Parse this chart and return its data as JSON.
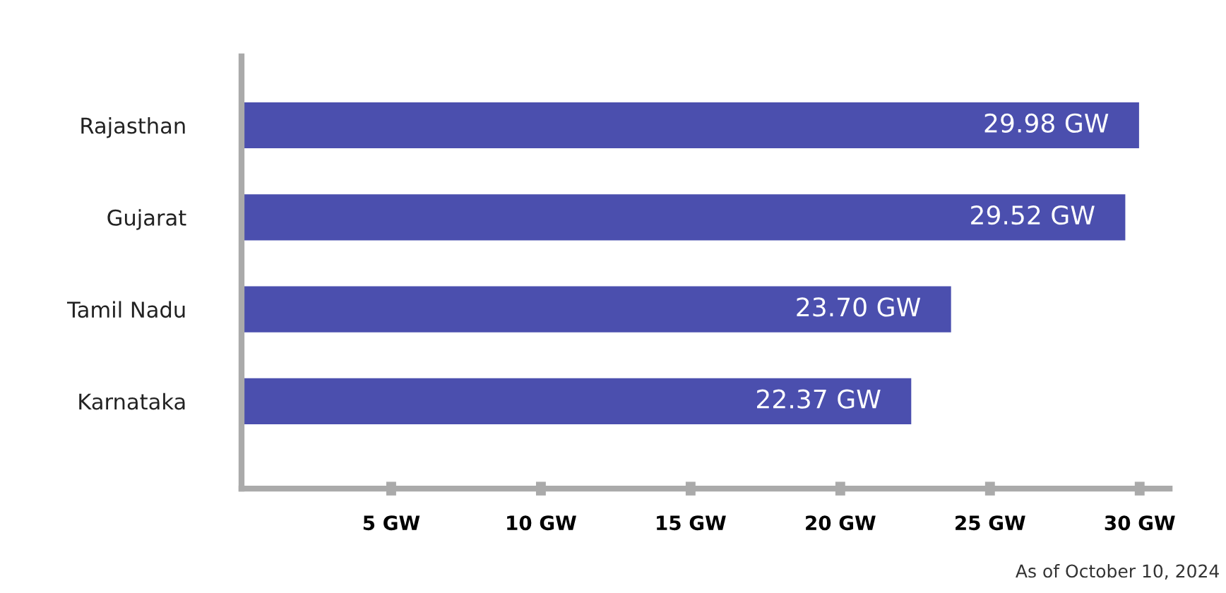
{
  "chart_data": {
    "type": "bar",
    "orientation": "horizontal",
    "categories": [
      "Rajasthan",
      "Gujarat",
      "Tamil Nadu",
      "Karnataka"
    ],
    "values": [
      29.98,
      29.52,
      23.7,
      22.37
    ],
    "value_labels": [
      "29.98 GW",
      "29.52 GW",
      "23.70 GW",
      "22.37 GW"
    ],
    "color": "#4b4fae",
    "xlim": [
      0,
      31
    ],
    "xticks": [
      {
        "value": 5,
        "label": "5 GW"
      },
      {
        "value": 10,
        "label": "10 GW"
      },
      {
        "value": 15,
        "label": "15 GW"
      },
      {
        "value": 20,
        "label": "20 GW"
      },
      {
        "value": 25,
        "label": "25 GW"
      },
      {
        "value": 30,
        "label": "30 GW"
      }
    ],
    "grid": false,
    "legend": false,
    "annotations": [
      "As of October 10, 2024"
    ]
  }
}
